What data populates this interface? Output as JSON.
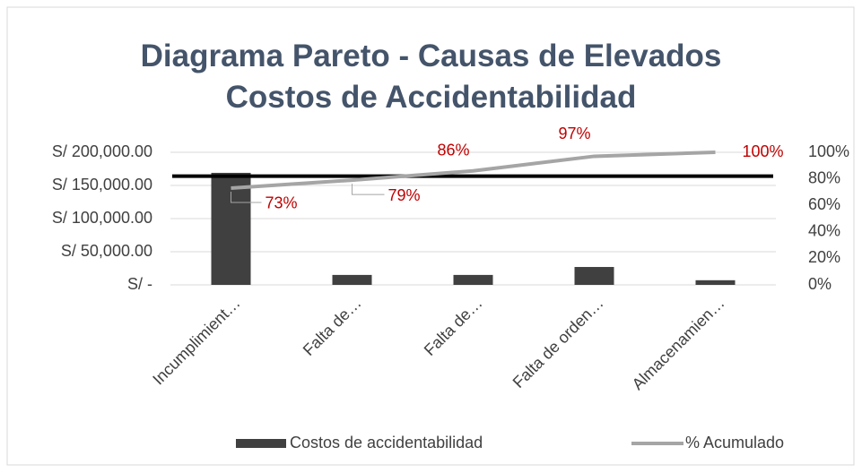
{
  "chart_data": {
    "type": "pareto",
    "title": "Diagrama Pareto - Causas de Elevados Costos de Accidentabilidad",
    "categories": [
      "Incumplimient…",
      "Falta de…",
      "Falta de…",
      "Falta de orden…",
      "Almacenamien…"
    ],
    "series": [
      {
        "name": "Costos de accidentabilidad",
        "color": "#404040",
        "values": [
          169000,
          15000,
          15000,
          27000,
          7000
        ]
      },
      {
        "name": "% Acumulado",
        "color": "#a5a5a5",
        "axis": "y2",
        "values": [
          73,
          79,
          86,
          97,
          100
        ],
        "value_labels": [
          "73%",
          "79%",
          "86%",
          "97%",
          "100%"
        ],
        "label_color": "#c00000"
      }
    ],
    "threshold": {
      "value": 82,
      "axis": "y2",
      "color": "#000000"
    },
    "ylim": [
      0,
      200000
    ],
    "yticks": [
      {
        "value": 0,
        "label": "S/ -"
      },
      {
        "value": 50000,
        "label": "S/ 50,000.00"
      },
      {
        "value": 100000,
        "label": "S/ 100,000.00"
      },
      {
        "value": 150000,
        "label": "S/ 150,000.00"
      },
      {
        "value": 200000,
        "label": "S/ 200,000.00"
      }
    ],
    "y2lim": [
      0,
      100
    ],
    "y2ticks": [
      {
        "value": 0,
        "label": "0%"
      },
      {
        "value": 20,
        "label": "20%"
      },
      {
        "value": 40,
        "label": "40%"
      },
      {
        "value": 60,
        "label": "60%"
      },
      {
        "value": 80,
        "label": "80%"
      },
      {
        "value": 100,
        "label": "100%"
      }
    ],
    "grid": true,
    "legend": "bottom"
  }
}
